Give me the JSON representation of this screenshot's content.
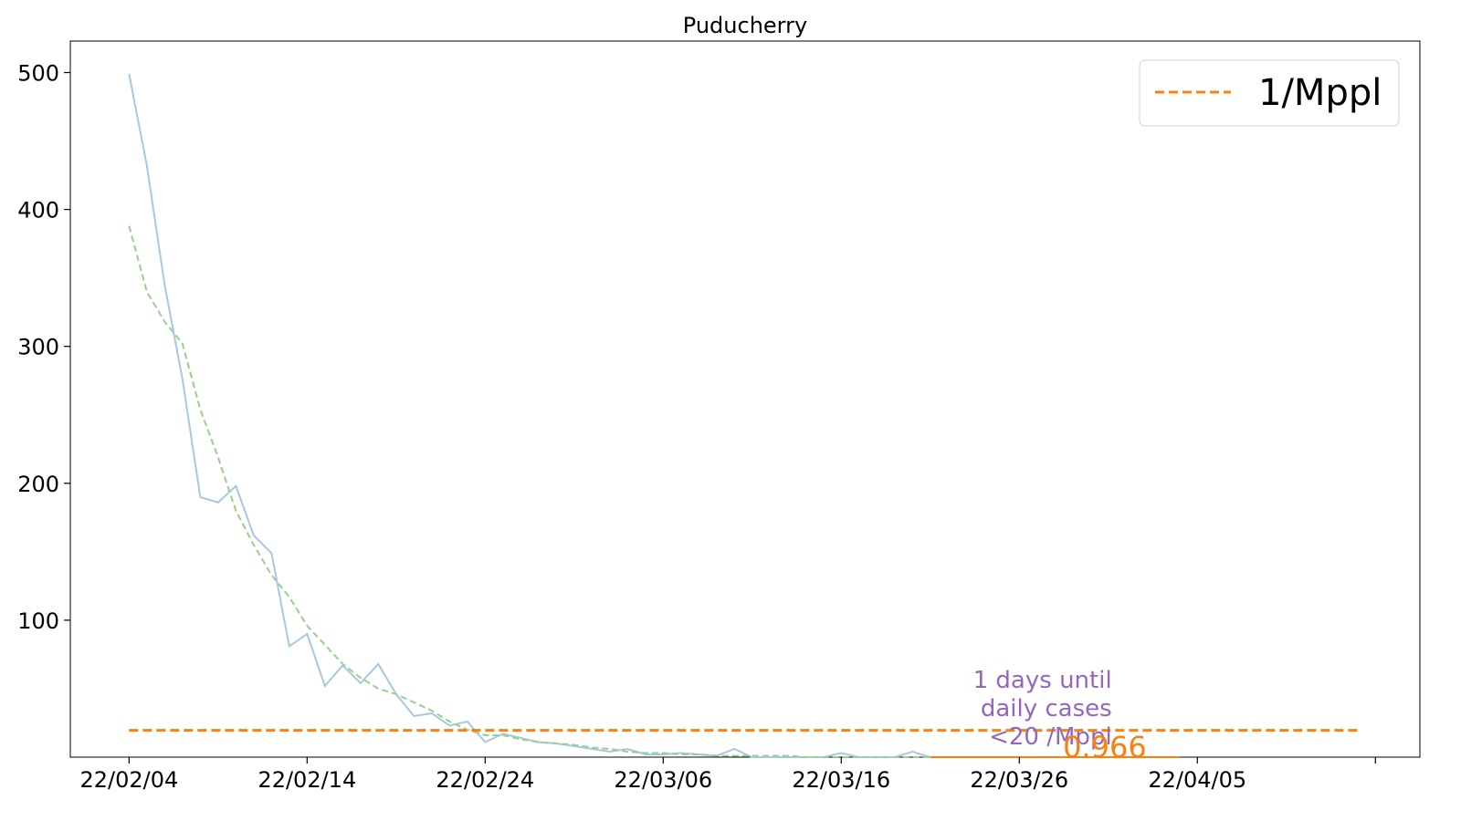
{
  "chart_data": {
    "type": "line",
    "title": "Puducherry",
    "xlabel": "",
    "ylabel": "",
    "x_start": "22/02/04",
    "x_tick_labels": [
      "22/02/04",
      "22/02/14",
      "22/02/24",
      "22/03/06",
      "22/03/16",
      "22/03/26",
      "22/04/05",
      ""
    ],
    "x_tick_days": [
      0,
      10,
      20,
      30,
      40,
      50,
      60,
      70
    ],
    "xlim_days": [
      -3.3,
      72.5
    ],
    "y_ticks": [
      100,
      200,
      300,
      400,
      500
    ],
    "ylim": [
      0,
      523
    ],
    "grid": false,
    "legend": {
      "position": "top-right",
      "entries": [
        {
          "label": "1/Mppl",
          "style": "dashed",
          "color": "#ff7f0e"
        }
      ]
    },
    "series": [
      {
        "color": "#a6c8e0",
        "style": "solid",
        "x_days": [
          0,
          1,
          2,
          3,
          4,
          5,
          6,
          7,
          8,
          9,
          10,
          11,
          12,
          13,
          14,
          15,
          16,
          17,
          18,
          19,
          20,
          21,
          22,
          23,
          24,
          25,
          26,
          27,
          28,
          29,
          30,
          31,
          32,
          33,
          34,
          35,
          36,
          37,
          38,
          39,
          40,
          41,
          42,
          43,
          44,
          45,
          46,
          47,
          48,
          49,
          50,
          51,
          52,
          53,
          54,
          55,
          56,
          57,
          58,
          59
        ],
        "values": [
          499,
          432,
          345,
          276,
          190,
          186,
          198,
          162,
          149,
          81,
          90,
          52,
          67,
          54,
          68,
          46,
          30,
          32,
          23,
          26,
          11,
          17,
          14,
          11,
          10,
          8,
          6,
          4,
          6,
          2,
          2,
          3,
          2,
          1,
          6,
          0,
          0,
          0,
          0,
          0,
          3,
          0,
          0,
          0,
          4,
          0,
          0,
          0,
          0,
          0,
          0,
          0,
          0,
          0,
          0,
          0,
          0,
          0,
          0,
          0
        ]
      },
      {
        "color": "#98d08e",
        "style": "dashed",
        "x_days": [
          0,
          1,
          2,
          3,
          4,
          5,
          6,
          7,
          8,
          9,
          10,
          11,
          12,
          13,
          14,
          15,
          16,
          17,
          18,
          19,
          20,
          21,
          22,
          23,
          24,
          25,
          26,
          27,
          28,
          29,
          30,
          31,
          32,
          33,
          34,
          35,
          36,
          37,
          38,
          39,
          40,
          41,
          42,
          43,
          44,
          45,
          46,
          47,
          48,
          49
        ],
        "values": [
          388,
          340,
          318,
          302,
          254,
          219,
          180,
          155,
          133,
          117,
          96,
          82,
          68,
          58,
          50,
          46,
          40,
          34,
          26,
          20,
          16,
          16,
          13,
          11,
          10,
          9,
          7,
          6,
          4,
          3,
          3,
          2,
          2,
          1,
          1,
          1,
          1,
          1,
          0,
          0,
          0,
          0,
          0,
          0,
          0,
          0,
          0,
          0,
          0,
          0
        ]
      },
      {
        "color": "#ff7f0e",
        "style": "dashed",
        "x_days": [
          0,
          69
        ],
        "values": [
          19.6,
          19.6
        ]
      },
      {
        "color": "#ff7f0e",
        "style": "solid",
        "x_days": [
          45,
          59
        ],
        "values": [
          0,
          0
        ]
      }
    ],
    "annotations": [
      {
        "text_lines": [
          "1 days until",
          "daily cases",
          "<20 /Mppl"
        ],
        "color": "#9467bd"
      },
      {
        "text": "0.966",
        "color": "#ff7f0e"
      }
    ]
  }
}
